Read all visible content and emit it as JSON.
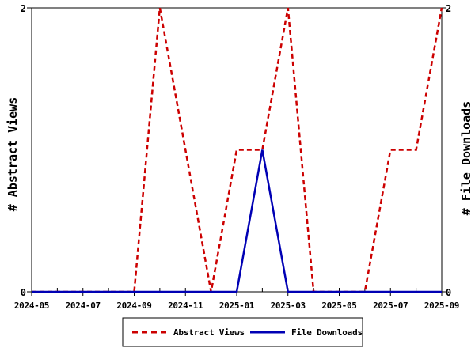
{
  "chart_data": {
    "type": "line",
    "x": [
      "2024-05",
      "2024-06",
      "2024-07",
      "2024-08",
      "2024-09",
      "2024-10",
      "2024-11",
      "2024-12",
      "2025-01",
      "2025-02",
      "2025-03",
      "2025-04",
      "2025-05",
      "2025-06",
      "2025-07",
      "2025-08",
      "2025-09"
    ],
    "series": [
      {
        "name": "Abstract Views",
        "color": "#cc0000",
        "style": "dashed",
        "axis": "left",
        "values": [
          0,
          0,
          0,
          0,
          0,
          2,
          1,
          0,
          1,
          1,
          2,
          0,
          0,
          0,
          1,
          1,
          2
        ]
      },
      {
        "name": "File Downloads",
        "color": "#0000b4",
        "style": "solid",
        "axis": "right",
        "values": [
          0,
          0,
          0,
          0,
          0,
          0,
          0,
          0,
          0,
          1,
          0,
          0,
          0,
          0,
          0,
          0,
          0
        ]
      }
    ],
    "ylabel_left": "# Abstract Views",
    "ylabel_right": "# File Downloads",
    "ylim": [
      0,
      2
    ],
    "yticks": [
      0,
      2
    ],
    "ytick_labels": [
      "0",
      "2"
    ],
    "xtick_labels": [
      "2024-05",
      "2024-07",
      "2024-09",
      "2024-11",
      "2025-01",
      "2025-03",
      "2025-05",
      "2025-07",
      "2025-09"
    ],
    "xtick_label_indices": [
      0,
      2,
      4,
      6,
      8,
      10,
      12,
      14,
      16
    ],
    "grid": false,
    "legend_position": "bottom-center",
    "axis_color": "#000000",
    "background": "#ffffff"
  }
}
